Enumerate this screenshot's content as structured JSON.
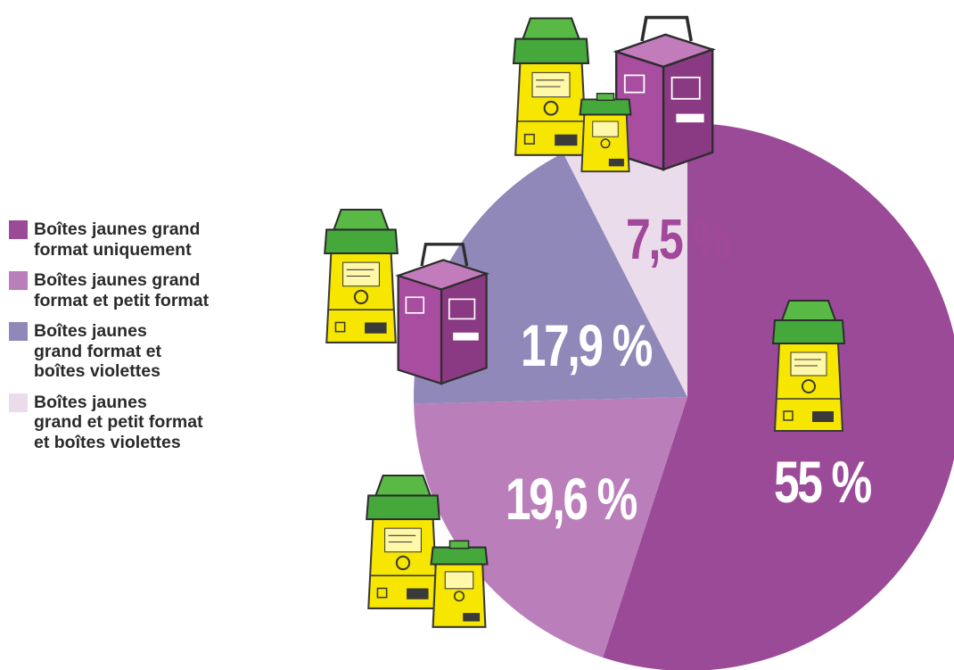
{
  "chart_data": {
    "type": "pie",
    "unit": "%",
    "slices": [
      {
        "label_lines": [
          "Boîtes jaunes grand",
          "format uniquement"
        ],
        "value": 55,
        "value_label": "55 %",
        "color": "#9b4a98",
        "label_color": "#ffffff"
      },
      {
        "label_lines": [
          "Boîtes jaunes grand",
          "format et petit format"
        ],
        "value": 19.6,
        "value_label": "19,6 %",
        "color": "#ba7fba",
        "label_color": "#ffffff"
      },
      {
        "label_lines": [
          "Boîtes jaunes",
          "grand format et",
          "boîtes violettes"
        ],
        "value": 17.9,
        "value_label": "17,9 %",
        "color": "#9088b8",
        "label_color": "#ffffff"
      },
      {
        "label_lines": [
          "Boîtes jaunes",
          "grand et petit format",
          "et boîtes violettes"
        ],
        "value": 7.5,
        "value_label": "7,5 %",
        "color": "#ebdcec",
        "label_color": "#a2489b"
      }
    ],
    "legend_position": "left"
  },
  "illustration_icons": [
    "large-yellow-sharps-container-icon",
    "small-yellow-sharps-container-icon",
    "purple-sharps-box-icon"
  ]
}
